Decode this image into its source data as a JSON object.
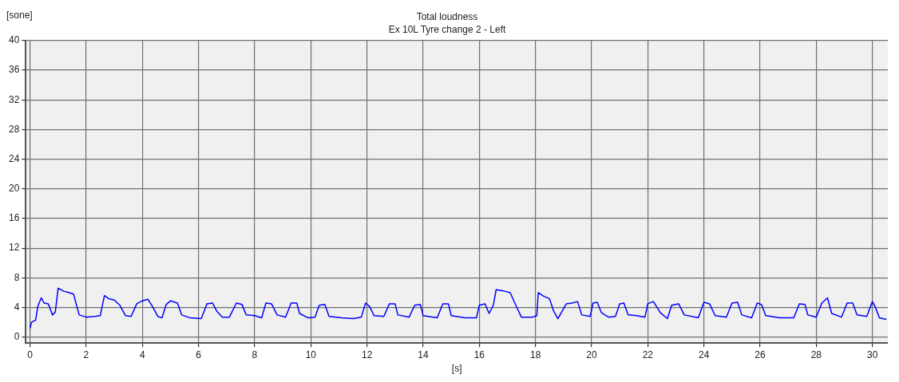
{
  "chart_data": {
    "type": "line",
    "title": "Total loudness",
    "subtitle": "Ex 10L Tyre change 2 - Left",
    "xlabel": "[s]",
    "ylabel": "[sone]",
    "xlim": [
      -0.15,
      30.55
    ],
    "xticks": [
      0,
      2,
      4,
      6,
      8,
      10,
      12,
      14,
      16,
      18,
      20,
      22,
      24,
      26,
      28,
      30
    ],
    "ylim": [
      -0.8,
      40
    ],
    "yticks": [
      0,
      4,
      8,
      12,
      16,
      20,
      24,
      28,
      32,
      36,
      40
    ],
    "grid": true,
    "legend": false,
    "marker": "none",
    "line_style": "solid",
    "series": [
      {
        "color": "#0000ff",
        "x": [
          0,
          0.05,
          0.2,
          0.28,
          0.4,
          0.5,
          0.65,
          0.8,
          0.9,
          1.0,
          1.2,
          1.4,
          1.55,
          1.75,
          2.0,
          2.3,
          2.5,
          2.65,
          2.8,
          3.0,
          3.2,
          3.4,
          3.6,
          3.8,
          4.0,
          4.2,
          4.35,
          4.55,
          4.7,
          4.85,
          5.0,
          5.25,
          5.4,
          5.7,
          6.1,
          6.3,
          6.5,
          6.65,
          6.85,
          7.1,
          7.35,
          7.55,
          7.7,
          8.0,
          8.25,
          8.4,
          8.6,
          8.8,
          9.1,
          9.3,
          9.5,
          9.6,
          9.9,
          10.15,
          10.3,
          10.5,
          10.65,
          11.1,
          11.5,
          11.8,
          11.95,
          12.1,
          12.25,
          12.6,
          12.8,
          13.0,
          13.1,
          13.5,
          13.7,
          13.9,
          14.0,
          14.5,
          14.7,
          14.9,
          15.0,
          15.5,
          15.9,
          16.0,
          16.2,
          16.35,
          16.5,
          16.6,
          16.9,
          17.1,
          17.3,
          17.5,
          17.9,
          18.05,
          18.1,
          18.3,
          18.5,
          18.65,
          18.8,
          19.1,
          19.3,
          19.5,
          19.65,
          19.95,
          20.05,
          20.2,
          20.35,
          20.6,
          20.85,
          21.0,
          21.15,
          21.3,
          21.6,
          21.9,
          22.0,
          22.2,
          22.45,
          22.7,
          22.85,
          23.1,
          23.3,
          23.8,
          24.0,
          24.2,
          24.4,
          24.8,
          25.0,
          25.2,
          25.35,
          25.7,
          25.9,
          26.05,
          26.2,
          26.7,
          27.2,
          27.4,
          27.6,
          27.7,
          28.0,
          28.2,
          28.4,
          28.55,
          28.9,
          29.1,
          29.3,
          29.45,
          29.8,
          30.0,
          30.1,
          30.25,
          30.5
        ],
        "values": [
          1.2,
          2.0,
          2.3,
          4.2,
          5.3,
          4.6,
          4.5,
          3.0,
          3.4,
          6.6,
          6.2,
          6.0,
          5.8,
          3.0,
          2.7,
          2.8,
          2.9,
          5.6,
          5.2,
          5.0,
          4.3,
          2.9,
          2.8,
          4.5,
          4.9,
          5.1,
          4.2,
          2.8,
          2.6,
          4.4,
          4.9,
          4.6,
          3.0,
          2.6,
          2.5,
          4.5,
          4.6,
          3.5,
          2.7,
          2.7,
          4.6,
          4.4,
          3.0,
          2.9,
          2.6,
          4.6,
          4.5,
          3.0,
          2.7,
          4.6,
          4.6,
          3.2,
          2.6,
          2.7,
          4.3,
          4.4,
          2.8,
          2.6,
          2.5,
          2.7,
          4.6,
          4.1,
          2.9,
          2.8,
          4.5,
          4.5,
          3.0,
          2.7,
          4.3,
          4.4,
          2.9,
          2.6,
          4.5,
          4.5,
          2.9,
          2.6,
          2.6,
          4.3,
          4.5,
          3.2,
          4.3,
          6.4,
          6.2,
          6.0,
          4.3,
          2.7,
          2.7,
          2.9,
          6.0,
          5.5,
          5.2,
          3.5,
          2.5,
          4.5,
          4.6,
          4.8,
          3.0,
          2.8,
          4.6,
          4.7,
          3.3,
          2.7,
          2.8,
          4.5,
          4.6,
          3.0,
          2.9,
          2.7,
          4.5,
          4.8,
          3.3,
          2.5,
          4.3,
          4.5,
          3.0,
          2.6,
          4.7,
          4.5,
          2.9,
          2.7,
          4.6,
          4.7,
          3.0,
          2.6,
          4.6,
          4.4,
          2.9,
          2.6,
          2.6,
          4.5,
          4.4,
          3.0,
          2.7,
          4.6,
          5.3,
          3.2,
          2.7,
          4.6,
          4.6,
          3.0,
          2.8,
          4.8,
          4.1,
          2.6,
          2.4
        ]
      }
    ]
  }
}
